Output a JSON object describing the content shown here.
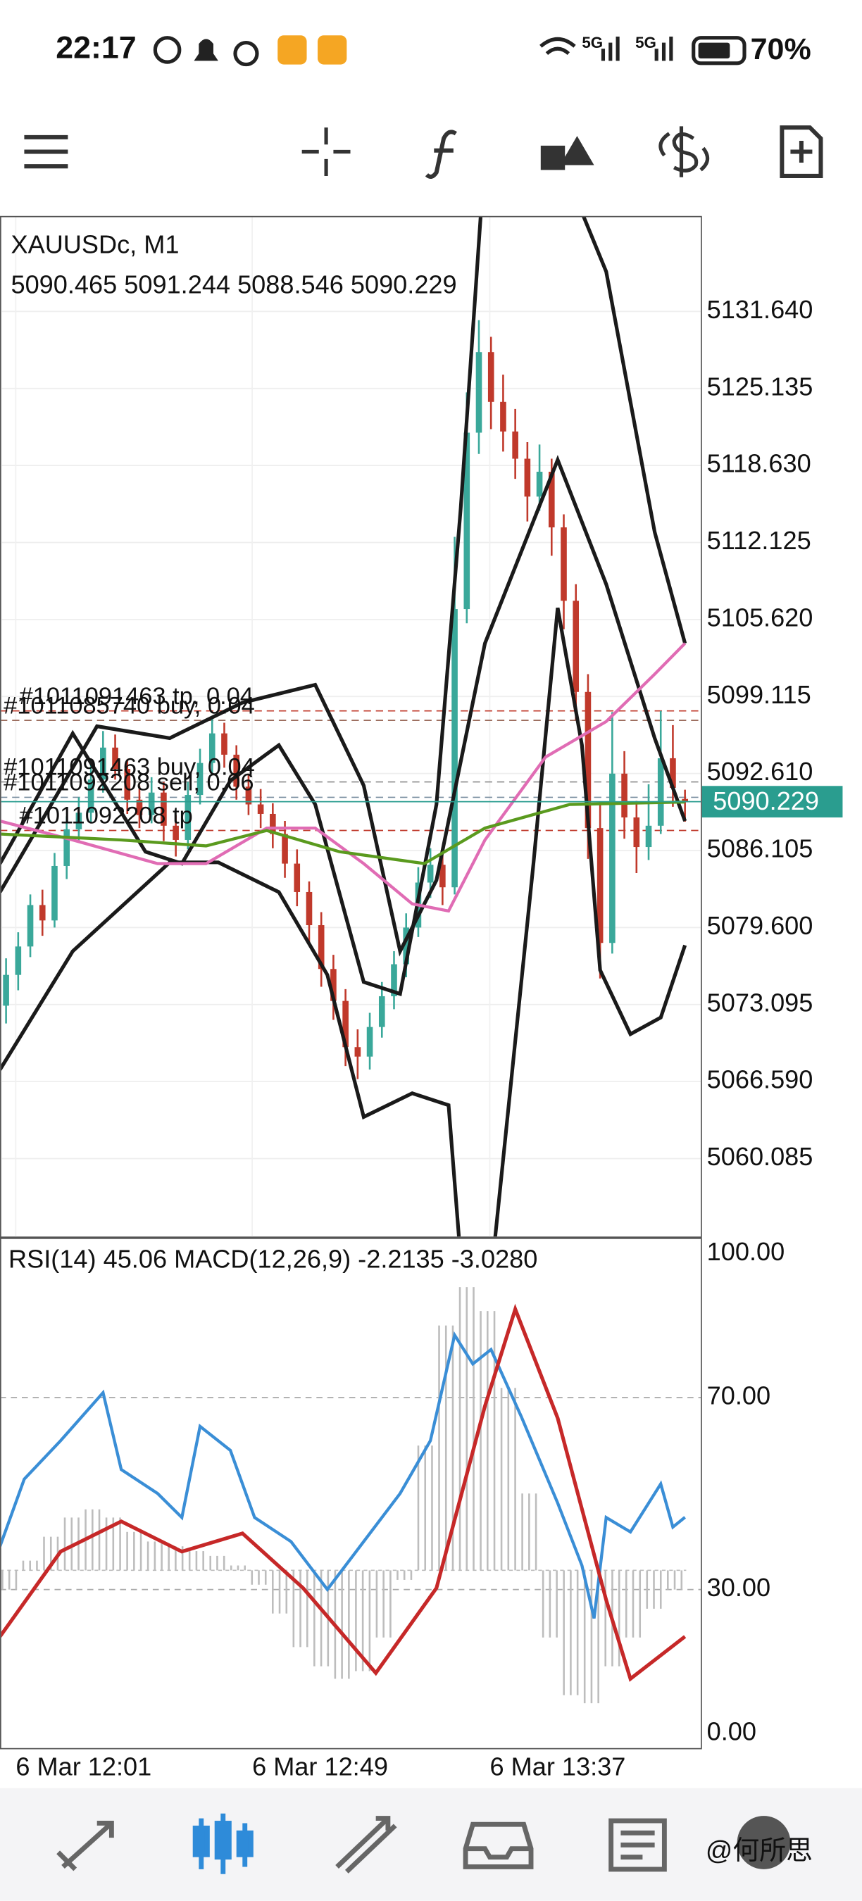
{
  "status_bar": {
    "time": "22:17",
    "signal_labels": [
      "5G",
      "5G"
    ],
    "battery": "70%"
  },
  "chart": {
    "symbol": "XAUUSDc, M1",
    "ohlc": [
      5090.465,
      5091.244,
      5088.546,
      5090.229
    ],
    "ylim": [
      5053.5,
      5139.6
    ],
    "yticks": [
      {
        "value": 5131.64,
        "label": "5131.640"
      },
      {
        "value": 5125.135,
        "label": "5125.135"
      },
      {
        "value": 5118.63,
        "label": "5118.630"
      },
      {
        "value": 5112.125,
        "label": "5112.125"
      },
      {
        "value": 5105.62,
        "label": "5105.620"
      },
      {
        "value": 5099.115,
        "label": "5099.115"
      },
      {
        "value": 5092.61,
        "label": "5092.610"
      },
      {
        "value": 5086.105,
        "label": "5086.105"
      },
      {
        "value": 5079.6,
        "label": "5079.600"
      },
      {
        "value": 5073.095,
        "label": "5073.095"
      },
      {
        "value": 5066.59,
        "label": "5066.590"
      },
      {
        "value": 5060.085,
        "label": "5060.085"
      }
    ],
    "up_color": "#3aa89a",
    "down_color": "#c0392b",
    "candles": [
      [
        5073.0,
        5077.0,
        5071.5,
        5075.6
      ],
      [
        5075.6,
        5079.2,
        5074.3,
        5078.0
      ],
      [
        5078.0,
        5082.4,
        5077.1,
        5081.5
      ],
      [
        5081.5,
        5082.8,
        5078.9,
        5080.2
      ],
      [
        5080.2,
        5085.9,
        5079.6,
        5084.8
      ],
      [
        5084.8,
        5089.0,
        5083.7,
        5087.9
      ],
      [
        5087.9,
        5090.6,
        5086.8,
        5089.3
      ],
      [
        5089.3,
        5093.4,
        5088.5,
        5092.1
      ],
      [
        5092.1,
        5096.2,
        5091.0,
        5094.8
      ],
      [
        5094.8,
        5095.9,
        5092.1,
        5093.0
      ],
      [
        5093.0,
        5093.8,
        5089.2,
        5090.4
      ],
      [
        5090.4,
        5091.6,
        5088.0,
        5089.1
      ],
      [
        5089.1,
        5092.3,
        5088.4,
        5091.0
      ],
      [
        5091.0,
        5091.9,
        5086.9,
        5088.2
      ],
      [
        5088.2,
        5089.1,
        5085.6,
        5087.0
      ],
      [
        5087.0,
        5091.9,
        5086.2,
        5090.8
      ],
      [
        5090.8,
        5094.7,
        5090.0,
        5093.5
      ],
      [
        5093.5,
        5097.4,
        5092.6,
        5096.0
      ],
      [
        5096.0,
        5096.9,
        5093.1,
        5094.2
      ],
      [
        5094.2,
        5095.0,
        5090.4,
        5091.5
      ],
      [
        5091.5,
        5092.6,
        5089.1,
        5090.0
      ],
      [
        5090.0,
        5091.3,
        5088.0,
        5089.2
      ],
      [
        5089.2,
        5090.1,
        5086.3,
        5087.5
      ],
      [
        5087.5,
        5088.6,
        5083.8,
        5085.0
      ],
      [
        5085.0,
        5086.2,
        5081.4,
        5082.6
      ],
      [
        5082.6,
        5083.5,
        5078.2,
        5079.8
      ],
      [
        5079.8,
        5080.9,
        5074.6,
        5076.1
      ],
      [
        5076.1,
        5077.3,
        5071.8,
        5073.4
      ],
      [
        5073.4,
        5074.4,
        5067.9,
        5069.5
      ],
      [
        5069.5,
        5071.0,
        5066.8,
        5068.7
      ],
      [
        5068.7,
        5072.4,
        5067.6,
        5071.2
      ],
      [
        5071.2,
        5075.0,
        5070.3,
        5073.8
      ],
      [
        5073.8,
        5077.6,
        5072.7,
        5076.5
      ],
      [
        5076.5,
        5080.8,
        5075.4,
        5079.6
      ],
      [
        5079.6,
        5084.7,
        5078.8,
        5083.4
      ],
      [
        5083.4,
        5086.3,
        5082.1,
        5084.9
      ],
      [
        5084.9,
        5086.0,
        5081.5,
        5083.0
      ],
      [
        5083.0,
        5112.6,
        5082.4,
        5106.5
      ],
      [
        5106.5,
        5124.8,
        5105.3,
        5121.4
      ],
      [
        5121.4,
        5130.9,
        5119.6,
        5128.2
      ],
      [
        5128.2,
        5129.5,
        5121.7,
        5124.0
      ],
      [
        5124.0,
        5126.3,
        5119.8,
        5121.5
      ],
      [
        5121.5,
        5123.4,
        5117.5,
        5119.2
      ],
      [
        5119.2,
        5120.6,
        5113.9,
        5116.0
      ],
      [
        5116.0,
        5120.4,
        5114.8,
        5118.1
      ],
      [
        5118.1,
        5119.2,
        5111.0,
        5113.4
      ],
      [
        5113.4,
        5114.5,
        5104.8,
        5107.2
      ],
      [
        5107.2,
        5108.6,
        5097.1,
        5099.5
      ],
      [
        5099.5,
        5101.0,
        5085.4,
        5088.0
      ],
      [
        5088.0,
        5090.2,
        5075.3,
        5078.3
      ],
      [
        5078.3,
        5097.8,
        5077.4,
        5092.6
      ],
      [
        5092.6,
        5094.5,
        5087.1,
        5088.9
      ],
      [
        5088.9,
        5090.3,
        5084.2,
        5086.4
      ],
      [
        5086.4,
        5091.7,
        5085.3,
        5088.2
      ],
      [
        5088.2,
        5097.9,
        5087.5,
        5093.9
      ],
      [
        5093.9,
        5096.7,
        5089.8,
        5091.4
      ]
    ],
    "overlays": [
      {
        "color": "#1a1a1a",
        "x": [
          -0.5,
          7.5,
          13.5,
          19.5,
          25.5,
          29.5,
          32.5,
          35.5,
          39.5,
          45.5,
          49.5,
          53.5,
          56
        ],
        "values": [
          5082.6,
          5096.6,
          5095.6,
          5098.6,
          5100.1,
          5091.6,
          5077.6,
          5083.6,
          5103.6,
          5119.1,
          5108.6,
          5095.6,
          5088.6
        ]
      },
      {
        "color": "#1a1a1a",
        "x": [
          -0.5,
          5.5,
          13.5,
          17.5,
          22.5,
          26.5,
          29.5,
          33.5,
          36.5,
          38,
          39.5,
          43.5,
          45.5,
          47.5,
          49,
          51.5,
          54,
          56
        ],
        "values": [
          5067.6,
          5077.6,
          5085.1,
          5085.1,
          5082.6,
          5075.6,
          5063.6,
          5065.6,
          5064.6,
          5045,
          5045,
          5085,
          5106.6,
          5095,
          5076,
          5070.6,
          5072,
          5078.1
        ]
      },
      {
        "color": "#1a1a1a",
        "x": [
          -0.5,
          5.5,
          11.5,
          14.5,
          18.5,
          22.5,
          25.5,
          29.5,
          32.5,
          35.5,
          37.5,
          39.5,
          45.5,
          49.5,
          53.5,
          56
        ],
        "values": [
          5085,
          5096,
          5086,
          5085,
          5092,
          5095,
          5090,
          5075,
          5074,
          5090,
          5115,
          5145,
          5145,
          5135,
          5113,
          5103.6
        ]
      },
      {
        "color": "#e06cb4",
        "x": [
          -0.5,
          5.5,
          12.5,
          16.5,
          21.5,
          25.5,
          29.5,
          33.5,
          36.5,
          39.5,
          44.5,
          49.5,
          53.5,
          56
        ],
        "values": [
          5088.6,
          5087,
          5085,
          5085,
          5088,
          5088,
          5085,
          5081.6,
          5081,
          5087,
          5094,
          5097,
          5101,
          5103.6
        ]
      },
      {
        "color": "#5a9a1e",
        "x": [
          -0.5,
          9.5,
          16.5,
          21.5,
          27.5,
          34.5,
          39.5,
          46.5,
          56
        ],
        "values": [
          5087.5,
          5087,
          5086.5,
          5087.8,
          5086,
          5085,
          5088,
          5090,
          5090.2
        ]
      }
    ],
    "orders": [
      {
        "label": "#1011085740 buy, 0.04",
        "price": 5097.1,
        "color": "#9a6a5a"
      },
      {
        "label": "#1011091463 tp, 0.04",
        "price": 5097.9,
        "color": "#c0392b"
      },
      {
        "label": "#1011091463 buy, 0.04",
        "price": 5091.9,
        "color": "#8a8a8a"
      },
      {
        "label": "#1011092208 sell, 0.06",
        "price": 5090.6,
        "color": "#7a8fa0"
      },
      {
        "label": "#1011092208 tp",
        "price": 5087.8,
        "color": "#c0392b"
      }
    ],
    "price_color": "#2a9d8f"
  },
  "indicator": {
    "label": "RSI(14) 45.06 MACD(12,26,9) -2.2135 -3.0280",
    "ylim": [
      0,
      100
    ],
    "yticks": [
      {
        "value": 100,
        "label": "100.00"
      },
      {
        "value": 70,
        "label": "70.00"
      },
      {
        "value": 30,
        "label": "30.00"
      },
      {
        "value": 0,
        "label": "0.00"
      }
    ],
    "grid": [
      70,
      30
    ],
    "rsi": {
      "color": "#3a8ed6",
      "x": [
        -0.5,
        1.5,
        4.5,
        8,
        9.5,
        12.5,
        14.5,
        16,
        18.5,
        20.5,
        23.5,
        26.5,
        29.5,
        32.5,
        35,
        37,
        38.5,
        40,
        42.5,
        45.5,
        47.5,
        48.5,
        49.5,
        51.5,
        54,
        55,
        56
      ],
      "values": [
        39,
        53,
        61,
        71,
        55,
        50,
        45,
        64,
        59,
        45,
        40,
        30,
        40,
        50,
        61,
        83,
        77,
        80,
        66,
        48,
        35,
        24,
        45,
        42,
        52,
        43,
        45.06
      ]
    },
    "signal": {
      "color": "#c62828",
      "x": [
        -0.5,
        4.5,
        9.5,
        14.5,
        19.5,
        24.5,
        30.5,
        35.5,
        39.5,
        42,
        45.5,
        49.5,
        51.5,
        56
      ],
      "values": [
        20.2,
        37.9,
        44.2,
        37.9,
        41.7,
        30.3,
        12.6,
        30.3,
        68.2,
        88.4,
        65.7,
        27.8,
        11.4,
        20.2
      ]
    },
    "hist_zero": 34,
    "hist_color": "#bdbdbd",
    "histogram": [
      30,
      36,
      41,
      45,
      46.7,
      45,
      42,
      40,
      39,
      38,
      37,
      35,
      31,
      25,
      18,
      14,
      11.4,
      13,
      20,
      32,
      60,
      85,
      93,
      88,
      72,
      50,
      20,
      8,
      6.3,
      14,
      20,
      26,
      30
    ]
  },
  "time_labels": [
    "6 Mar 12:01",
    "6 Mar 12:49",
    "6 Mar 13:37"
  ],
  "watermark": "@何所思"
}
